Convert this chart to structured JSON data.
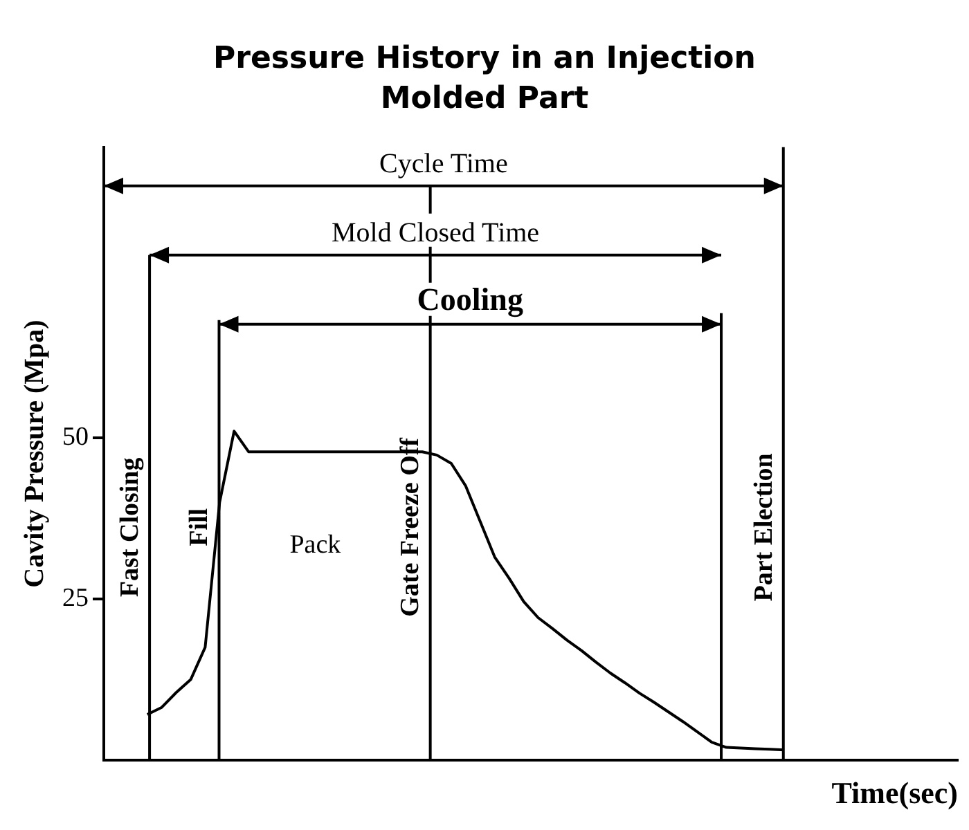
{
  "chart_data": {
    "type": "line",
    "title": "Pressure History in an Injection Molded Part",
    "xlabel": "Time(sec)",
    "ylabel": "Cavity Pressure (Mpa)",
    "categories": [
      null,
      null,
      null,
      null,
      null,
      null,
      null,
      null,
      null,
      null,
      null,
      null,
      null,
      null,
      null,
      null,
      null,
      null,
      null,
      null,
      null,
      null,
      null,
      null,
      null,
      null,
      null,
      null,
      null,
      null,
      null,
      null,
      null,
      null,
      null,
      null,
      null,
      null,
      null,
      null,
      null,
      null,
      null,
      null,
      null,
      null,
      null,
      null,
      null,
      null,
      null,
      null,
      null,
      null,
      null,
      null,
      null,
      null,
      null,
      null
    ],
    "series": [
      {
        "color": "#000000",
        "values": [
          null,
          null,
          null,
          7.1,
          8.2,
          10.5,
          12.5,
          17.5,
          40,
          51,
          47.8,
          47.8,
          47.8,
          47.8,
          47.8,
          47.8,
          47.8,
          47.8,
          47.8,
          47.8,
          47.8,
          47.8,
          47.8,
          47.3,
          46,
          42.5,
          37,
          31.5,
          28.2,
          24.6,
          22.1,
          20.4,
          18.6,
          17.0,
          15.2,
          13.5,
          12.0,
          10.4,
          9.0,
          7.5,
          6.0,
          4.4,
          2.8,
          2.0,
          1.9,
          1.8,
          1.7,
          1.6,
          null,
          null,
          null,
          null,
          null,
          null,
          null,
          null,
          null,
          null,
          null,
          null
        ]
      }
    ],
    "ylim": [
      0,
      95
    ],
    "yticks": [
      25,
      50
    ],
    "tick_labels": "y",
    "grid": "x",
    "legend": false,
    "marker": "none",
    "line_style": "solid",
    "annotations": [
      "Cycle Time",
      "Mold Closed Time",
      "Cooling",
      "Fast Closing",
      "Fill",
      "Pack",
      "Gate Freeze Off",
      "Part Election"
    ]
  }
}
